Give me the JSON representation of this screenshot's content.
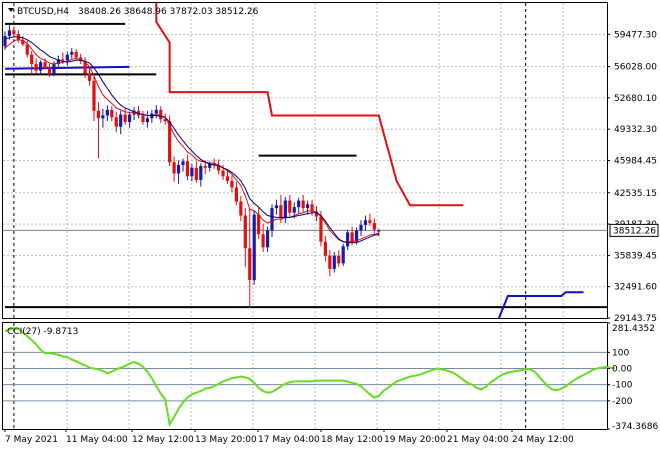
{
  "header": {
    "symbol": "BTCUSD,H4",
    "ohlc": "38408.26 38648.96 37872.03 38512.26"
  },
  "colors": {
    "bull": "#1a1aa8",
    "bear": "#e01010",
    "ma_fast": "#e01010",
    "ma_slow": "#000080",
    "stop_upper": "#e01010",
    "stop_lower": "#1010c8",
    "cci": "#66dd22",
    "grid": "#c0c0c0"
  },
  "chart_data": [
    {
      "type": "candlestick",
      "title": "BTCUSD,H4",
      "ylim": [
        29143.75,
        62826
      ],
      "yticks": [
        "59477.30",
        "56028.00",
        "52680.10",
        "49332.30",
        "45984.45",
        "42535.15",
        "39187.30",
        "35839.45",
        "32491.60",
        "29143.75"
      ],
      "current_price_label": "38512.26",
      "current_price": 38512.26,
      "x_tick_labels": [
        "7 May 2021",
        "11 May 04:00",
        "12 May 12:00",
        "13 May 20:00",
        "17 May 04:00",
        "18 May 12:00",
        "19 May 20:00",
        "21 May 04:00",
        "24 May 12:00"
      ],
      "candles": [
        {
          "o": 58200,
          "h": 59800,
          "l": 57800,
          "c": 59300
        },
        {
          "o": 59300,
          "h": 60500,
          "l": 58900,
          "c": 59900
        },
        {
          "o": 59900,
          "h": 60300,
          "l": 59200,
          "c": 59500
        },
        {
          "o": 59500,
          "h": 59900,
          "l": 58600,
          "c": 58900
        },
        {
          "o": 58900,
          "h": 59300,
          "l": 58200,
          "c": 58400
        },
        {
          "o": 58400,
          "h": 58800,
          "l": 57000,
          "c": 57300
        },
        {
          "o": 57300,
          "h": 57700,
          "l": 55200,
          "c": 56300
        },
        {
          "o": 56300,
          "h": 56900,
          "l": 55300,
          "c": 55600
        },
        {
          "o": 55600,
          "h": 56700,
          "l": 55200,
          "c": 56500
        },
        {
          "o": 56500,
          "h": 56900,
          "l": 55700,
          "c": 55900
        },
        {
          "o": 55900,
          "h": 56300,
          "l": 54900,
          "c": 55200
        },
        {
          "o": 55200,
          "h": 56600,
          "l": 55000,
          "c": 56300
        },
        {
          "o": 56300,
          "h": 57200,
          "l": 55800,
          "c": 56800
        },
        {
          "o": 56800,
          "h": 57500,
          "l": 56300,
          "c": 56700
        },
        {
          "o": 56700,
          "h": 57600,
          "l": 56100,
          "c": 57300
        },
        {
          "o": 57300,
          "h": 58000,
          "l": 56900,
          "c": 57600
        },
        {
          "o": 57600,
          "h": 57900,
          "l": 56700,
          "c": 57000
        },
        {
          "o": 57000,
          "h": 57400,
          "l": 56300,
          "c": 56600
        },
        {
          "o": 56600,
          "h": 57000,
          "l": 54800,
          "c": 55300
        },
        {
          "o": 55300,
          "h": 56000,
          "l": 54000,
          "c": 54500
        },
        {
          "o": 54500,
          "h": 55000,
          "l": 50200,
          "c": 51300
        },
        {
          "o": 51300,
          "h": 52200,
          "l": 46200,
          "c": 50500
        },
        {
          "o": 50500,
          "h": 51500,
          "l": 49500,
          "c": 50800
        },
        {
          "o": 50800,
          "h": 51900,
          "l": 50200,
          "c": 51400
        },
        {
          "o": 51400,
          "h": 51800,
          "l": 50200,
          "c": 50600
        },
        {
          "o": 50600,
          "h": 51200,
          "l": 49000,
          "c": 49600
        },
        {
          "o": 49600,
          "h": 51300,
          "l": 48800,
          "c": 50900
        },
        {
          "o": 50900,
          "h": 51600,
          "l": 49800,
          "c": 50100
        },
        {
          "o": 50100,
          "h": 51200,
          "l": 49500,
          "c": 50900
        },
        {
          "o": 50900,
          "h": 51700,
          "l": 50300,
          "c": 51300
        },
        {
          "o": 51300,
          "h": 51800,
          "l": 50500,
          "c": 50800
        },
        {
          "o": 50800,
          "h": 51300,
          "l": 49800,
          "c": 50100
        },
        {
          "o": 50100,
          "h": 51300,
          "l": 49500,
          "c": 50500
        },
        {
          "o": 50500,
          "h": 51400,
          "l": 50000,
          "c": 51000
        },
        {
          "o": 51000,
          "h": 51900,
          "l": 50500,
          "c": 51400
        },
        {
          "o": 51400,
          "h": 51800,
          "l": 50000,
          "c": 50400
        },
        {
          "o": 50400,
          "h": 51000,
          "l": 49800,
          "c": 50200
        },
        {
          "o": 50200,
          "h": 50800,
          "l": 45400,
          "c": 45800
        },
        {
          "o": 45800,
          "h": 46400,
          "l": 43700,
          "c": 44600
        },
        {
          "o": 44600,
          "h": 46000,
          "l": 43500,
          "c": 45500
        },
        {
          "o": 45500,
          "h": 46200,
          "l": 44800,
          "c": 45900
        },
        {
          "o": 45900,
          "h": 46600,
          "l": 43900,
          "c": 44300
        },
        {
          "o": 44300,
          "h": 45600,
          "l": 43800,
          "c": 45200
        },
        {
          "o": 45200,
          "h": 45900,
          "l": 43600,
          "c": 43900
        },
        {
          "o": 43900,
          "h": 45700,
          "l": 43200,
          "c": 45400
        },
        {
          "o": 45400,
          "h": 46000,
          "l": 44500,
          "c": 45200
        },
        {
          "o": 45200,
          "h": 45900,
          "l": 44800,
          "c": 45700
        },
        {
          "o": 45700,
          "h": 46200,
          "l": 45100,
          "c": 45500
        },
        {
          "o": 45500,
          "h": 46100,
          "l": 44500,
          "c": 44900
        },
        {
          "o": 44900,
          "h": 45500,
          "l": 43900,
          "c": 44300
        },
        {
          "o": 44300,
          "h": 44900,
          "l": 43500,
          "c": 43800
        },
        {
          "o": 43800,
          "h": 44400,
          "l": 42600,
          "c": 43100
        },
        {
          "o": 43100,
          "h": 43700,
          "l": 41200,
          "c": 41600
        },
        {
          "o": 41600,
          "h": 42200,
          "l": 39500,
          "c": 40100
        },
        {
          "o": 40100,
          "h": 40900,
          "l": 34600,
          "c": 36600
        },
        {
          "o": 36600,
          "h": 40800,
          "l": 30200,
          "c": 33200
        },
        {
          "o": 33200,
          "h": 40600,
          "l": 32700,
          "c": 40200
        },
        {
          "o": 40200,
          "h": 40900,
          "l": 37600,
          "c": 38100
        },
        {
          "o": 38100,
          "h": 39200,
          "l": 36200,
          "c": 36700
        },
        {
          "o": 36700,
          "h": 38900,
          "l": 36200,
          "c": 38500
        },
        {
          "o": 38500,
          "h": 41300,
          "l": 37800,
          "c": 40900
        },
        {
          "o": 40900,
          "h": 41800,
          "l": 40200,
          "c": 41200
        },
        {
          "o": 41200,
          "h": 42300,
          "l": 39300,
          "c": 39800
        },
        {
          "o": 39800,
          "h": 42100,
          "l": 39300,
          "c": 41700
        },
        {
          "o": 41700,
          "h": 42300,
          "l": 40000,
          "c": 40400
        },
        {
          "o": 40400,
          "h": 41500,
          "l": 39800,
          "c": 41000
        },
        {
          "o": 41000,
          "h": 42000,
          "l": 40300,
          "c": 41700
        },
        {
          "o": 41700,
          "h": 42300,
          "l": 40500,
          "c": 40900
        },
        {
          "o": 40900,
          "h": 41700,
          "l": 40200,
          "c": 41300
        },
        {
          "o": 41300,
          "h": 41800,
          "l": 40100,
          "c": 40500
        },
        {
          "o": 40500,
          "h": 41100,
          "l": 39500,
          "c": 40000
        },
        {
          "o": 40000,
          "h": 40600,
          "l": 36800,
          "c": 37300
        },
        {
          "o": 37300,
          "h": 37900,
          "l": 35200,
          "c": 35800
        },
        {
          "o": 35800,
          "h": 36400,
          "l": 33600,
          "c": 34400
        },
        {
          "o": 34400,
          "h": 36200,
          "l": 34000,
          "c": 35800
        },
        {
          "o": 35800,
          "h": 36400,
          "l": 34600,
          "c": 35000
        },
        {
          "o": 35000,
          "h": 37100,
          "l": 34700,
          "c": 36800
        },
        {
          "o": 36800,
          "h": 38600,
          "l": 36400,
          "c": 38300
        },
        {
          "o": 38300,
          "h": 38900,
          "l": 36900,
          "c": 37300
        },
        {
          "o": 37300,
          "h": 38800,
          "l": 37000,
          "c": 38500
        },
        {
          "o": 38500,
          "h": 39600,
          "l": 37900,
          "c": 39100
        },
        {
          "o": 39100,
          "h": 40100,
          "l": 38500,
          "c": 39600
        },
        {
          "o": 39600,
          "h": 40300,
          "l": 39000,
          "c": 39300
        },
        {
          "o": 39300,
          "h": 39800,
          "l": 38200,
          "c": 38600
        },
        {
          "o": 38400,
          "h": 38700,
          "l": 37900,
          "c": 38500
        }
      ],
      "overlays": [
        {
          "kind": "ma_fast",
          "values": [
            58000,
            58400,
            58800,
            58900,
            58800,
            58500,
            57900,
            57300,
            56900,
            56700,
            56400,
            56300,
            56400,
            56500,
            56600,
            56800,
            56900,
            56800,
            56500,
            56000,
            55000,
            53900,
            53000,
            52500,
            52100,
            51600,
            51400,
            51200,
            51100,
            51100,
            51000,
            50900,
            50800,
            50800,
            50900,
            50800,
            50600,
            49700,
            48800,
            48000,
            47500,
            46900,
            46600,
            46100,
            45900,
            45800,
            45700,
            45700,
            45500,
            45200,
            44900,
            44500,
            43900,
            43300,
            42200,
            40800,
            40600,
            40200,
            39600,
            39300,
            39500,
            39700,
            39700,
            39900,
            39900,
            40100,
            40300,
            40400,
            40600,
            40600,
            40500,
            40000,
            39300,
            38500,
            38000,
            37500,
            37300,
            37300,
            37300,
            37400,
            37600,
            37800,
            38000,
            38100,
            38200
          ]
        },
        {
          "kind": "ma_slow",
          "values": [
            59000,
            59100,
            59200,
            59200,
            59100,
            58900,
            58600,
            58200,
            57800,
            57500,
            57100,
            56900,
            56700,
            56600,
            56500,
            56600,
            56700,
            56700,
            56600,
            56400,
            55900,
            55200,
            54400,
            53700,
            53000,
            52400,
            51900,
            51600,
            51400,
            51200,
            51000,
            50900,
            50800,
            50800,
            50800,
            50700,
            50600,
            50100,
            49400,
            48700,
            48100,
            47500,
            47000,
            46500,
            46100,
            45800,
            45600,
            45500,
            45400,
            45200,
            45000,
            44700,
            44300,
            43800,
            43000,
            41900,
            41400,
            41000,
            40500,
            40100,
            40000,
            39900,
            39900,
            39900,
            39900,
            40000,
            40100,
            40200,
            40300,
            40400,
            40400,
            40100,
            39500,
            38800,
            38200,
            37600,
            37300,
            37200,
            37200,
            37200,
            37400,
            37600,
            37800,
            38000,
            38100
          ]
        }
      ],
      "trailing_stop_upper": [
        {
          "x": 34,
          "y": 63000
        },
        {
          "x": 34,
          "y": 60800
        },
        {
          "x": 37,
          "y": 58600
        },
        {
          "x": 37,
          "y": 53300
        },
        {
          "x": 59,
          "y": 53300
        },
        {
          "x": 60,
          "y": 50800
        },
        {
          "x": 84,
          "y": 50800
        },
        {
          "x": 88,
          "y": 43800
        },
        {
          "x": 91,
          "y": 41200
        },
        {
          "x": 103,
          "y": 41200
        }
      ],
      "trailing_stop_lower": [
        {
          "x": 0,
          "y": 55800
        },
        {
          "x": 28,
          "y": 56000
        }
      ],
      "trailing_stop_lower_2": [
        {
          "x": 111,
          "y": 29100
        },
        {
          "x": 113,
          "y": 31500
        },
        {
          "x": 125,
          "y": 31500
        },
        {
          "x": 126,
          "y": 31900
        },
        {
          "x": 130,
          "y": 31900
        }
      ],
      "horizontal_segments": [
        {
          "y": 60600,
          "x0": 0,
          "x1": 27
        },
        {
          "y": 55200,
          "x0": 0,
          "x1": 34
        },
        {
          "y": 46500,
          "x0": 57,
          "x1": 79
        },
        {
          "y": 30300,
          "x0": 0,
          "x1": 150
        }
      ],
      "vertical_markers_x": [
        2,
        117
      ]
    },
    {
      "type": "line",
      "title": "CCI(27) -9.8713",
      "ylim": [
        -374.3686,
        281.4352
      ],
      "yticks": [
        "281.4352",
        "100",
        "0.00",
        "-100",
        "-200",
        "-374.3686"
      ],
      "reference_levels": [
        100,
        0,
        -100,
        -200
      ],
      "values": [
        230,
        240,
        250,
        245,
        225,
        200,
        175,
        150,
        115,
        95,
        95,
        90,
        85,
        75,
        70,
        55,
        45,
        30,
        20,
        5,
        0,
        -5,
        -15,
        -30,
        -20,
        -5,
        5,
        15,
        30,
        40,
        30,
        10,
        -20,
        -60,
        -110,
        -155,
        -190,
        -345,
        -300,
        -250,
        -210,
        -180,
        -160,
        -150,
        -140,
        -125,
        -120,
        -110,
        -95,
        -80,
        -70,
        -60,
        -55,
        -50,
        -55,
        -65,
        -90,
        -120,
        -140,
        -150,
        -145,
        -130,
        -110,
        -95,
        -85,
        -80,
        -80,
        -80,
        -80,
        -80,
        -75,
        -75,
        -75,
        -75,
        -75,
        -75,
        -75,
        -80,
        -90,
        -95,
        -110,
        -135,
        -160,
        -180,
        -170,
        -140,
        -120,
        -100,
        -80,
        -70,
        -60,
        -50,
        -45,
        -40,
        -30,
        -20,
        -10,
        0,
        -5,
        -10,
        -20,
        -30,
        -50,
        -70,
        -90,
        -100,
        -120,
        -130,
        -115,
        -90,
        -70,
        -50,
        -35,
        -25,
        -20,
        -15,
        -10,
        -5,
        -5,
        -20,
        -50,
        -80,
        -110,
        -130,
        -135,
        -125,
        -110,
        -90,
        -70,
        -55,
        -40,
        -25,
        -10,
        0,
        5,
        10,
        5,
        0
      ]
    }
  ]
}
